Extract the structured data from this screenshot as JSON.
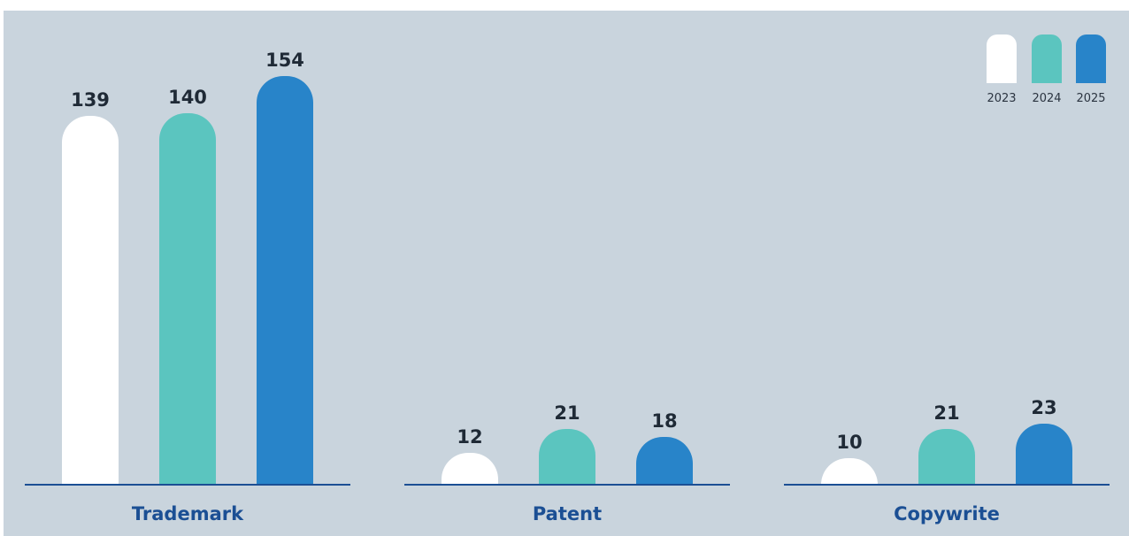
{
  "chart_data": {
    "type": "bar",
    "categories": [
      "Trademark",
      "Patent",
      "Copywrite"
    ],
    "series": [
      {
        "name": "2023",
        "color": "#ffffff",
        "values": [
          139,
          12,
          10
        ]
      },
      {
        "name": "2024",
        "color": "#5bc5bf",
        "values": [
          140,
          21,
          21
        ]
      },
      {
        "name": "2025",
        "color": "#2884c9",
        "values": [
          154,
          18,
          23
        ]
      }
    ],
    "legend_position": "top-right",
    "grid": false,
    "baseline_color": "#1b4f94",
    "category_label_color": "#1b4f94",
    "value_label_color": "#1f2a36"
  }
}
